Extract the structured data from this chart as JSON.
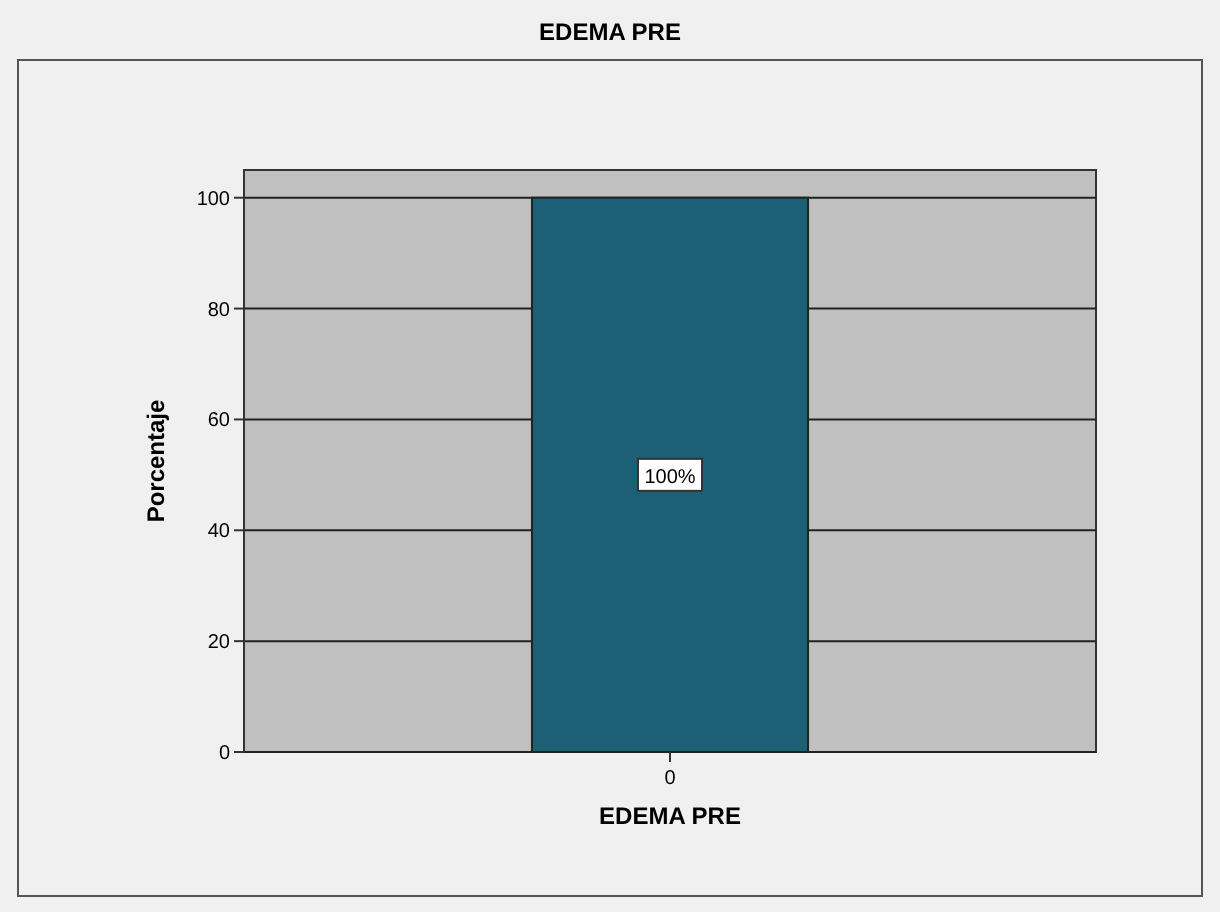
{
  "chart_data": {
    "type": "bar",
    "title": "EDEMA PRE",
    "xlabel": "EDEMA PRE",
    "ylabel": "Porcentaje",
    "categories": [
      "0"
    ],
    "values": [
      100
    ],
    "color": "#1d5f75",
    "value_labels": [
      "100%"
    ],
    "ylim": [
      0,
      105
    ],
    "yticks": [
      0,
      20,
      40,
      60,
      80,
      100
    ],
    "grid": "y"
  }
}
